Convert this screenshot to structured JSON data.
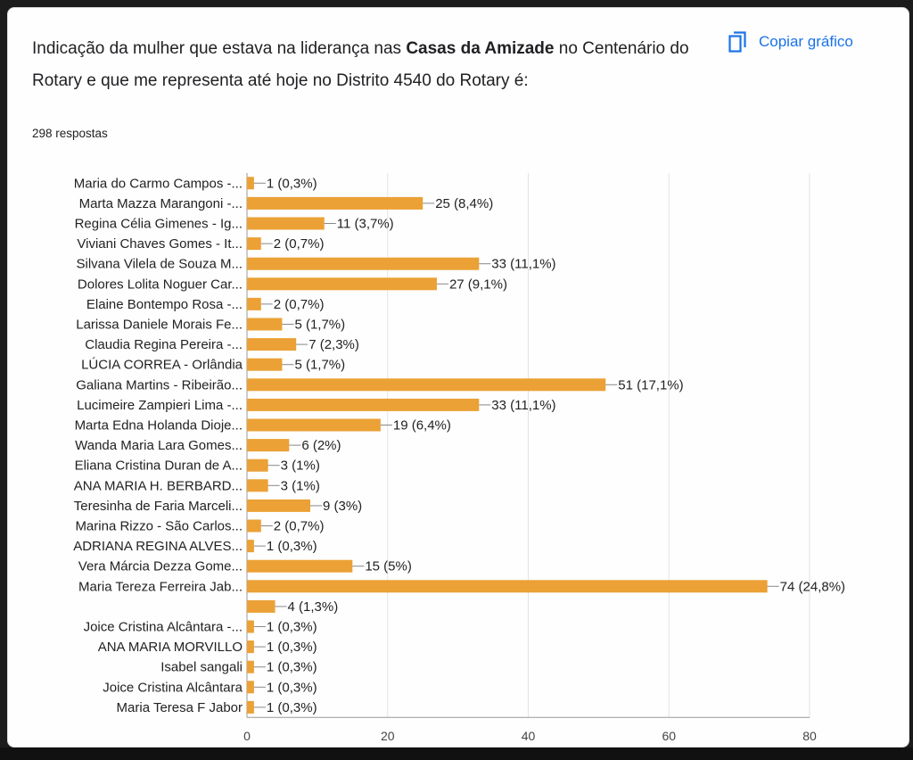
{
  "question": {
    "prefix": "Indicação da mulher que estava na liderança nas ",
    "bold": "Casas da Amizade",
    "suffix": " no Centenário do Rotary e que me representa até hoje no Distrito 4540 do Rotary é:"
  },
  "response_count": "298 respostas",
  "copy_button": {
    "label": "Copiar gráfico",
    "icon": "copy-icon"
  },
  "colors": {
    "bar": "#eba135",
    "accent": "#1a73e8",
    "grid": "#e3e3e3"
  },
  "chart_data": {
    "type": "bar",
    "orientation": "horizontal",
    "xlim": [
      0,
      80
    ],
    "x_ticks": [
      0,
      20,
      40,
      60,
      80
    ],
    "categories": [
      "Maria do Carmo Campos -...",
      "Marta Mazza Marangoni -...",
      "Regina Célia Gimenes - Ig...",
      "Viviani Chaves Gomes - It...",
      "Silvana Vilela de Souza M...",
      "Dolores Lolita Noguer Car...",
      "Elaine Bontempo Rosa -...",
      "Larissa Daniele Morais Fe...",
      "Claudia Regina Pereira -...",
      "LÚCIA CORREA - Orlândia",
      "Galiana Martins - Ribeirão...",
      "Lucimeire Zampieri Lima -...",
      "Marta Edna Holanda Dioje...",
      "Wanda Maria Lara Gomes...",
      "Eliana Cristina Duran de A...",
      "ANA MARIA H. BERBARD...",
      "Teresinha de Faria Marceli...",
      "Marina Rizzo - São Carlos...",
      "ADRIANA REGINA ALVES...",
      "Vera Márcia Dezza Gome...",
      "Maria Tereza Ferreira Jab...",
      "",
      "Joice Cristina Alcântara -...",
      "ANA MARIA MORVILLO",
      "Isabel sangali",
      "Joice Cristina Alcântara",
      "Maria Teresa F Jabor"
    ],
    "values": [
      1,
      25,
      11,
      2,
      33,
      27,
      2,
      5,
      7,
      5,
      51,
      33,
      19,
      6,
      3,
      3,
      9,
      2,
      1,
      15,
      74,
      4,
      1,
      1,
      1,
      1,
      1
    ],
    "data_labels": [
      "1 (0,3%)",
      "25 (8,4%)",
      "11 (3,7%)",
      "2 (0,7%)",
      "33 (11,1%)",
      "27 (9,1%)",
      "2 (0,7%)",
      "5 (1,7%)",
      "7 (2,3%)",
      "5 (1,7%)",
      "51 (17,1%)",
      "33 (11,1%)",
      "19 (6,4%)",
      "6 (2%)",
      "3 (1%)",
      "3 (1%)",
      "9 (3%)",
      "2 (0,7%)",
      "1 (0,3%)",
      "15 (5%)",
      "74 (24,8%)",
      "4 (1,3%)",
      "1 (0,3%)",
      "1 (0,3%)",
      "1 (0,3%)",
      "1 (0,3%)",
      "1 (0,3%)"
    ],
    "title": "",
    "xlabel": "",
    "ylabel": ""
  }
}
